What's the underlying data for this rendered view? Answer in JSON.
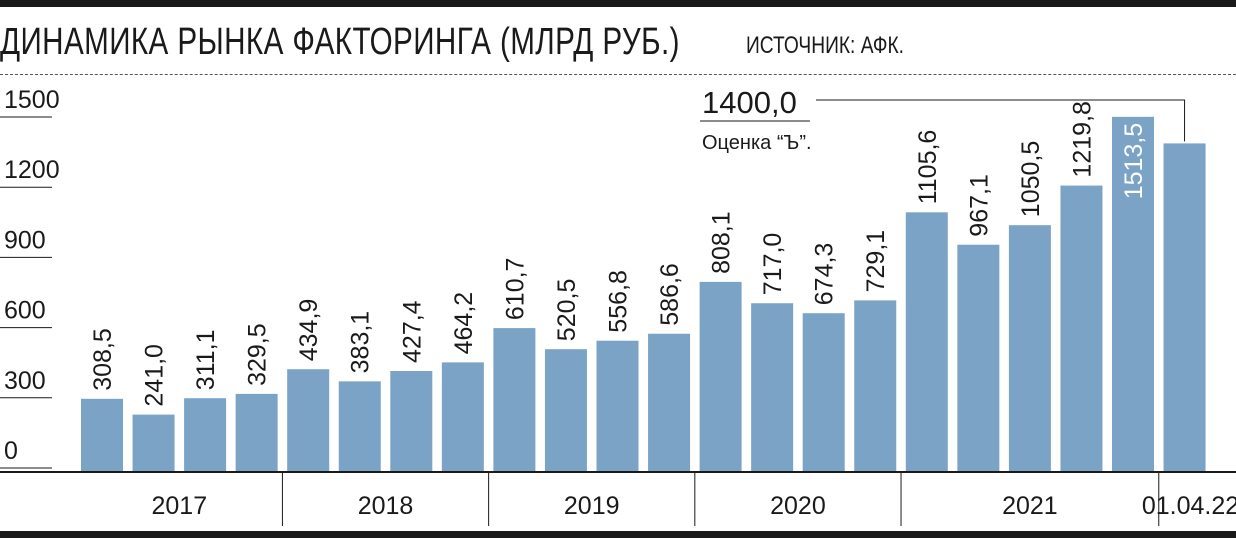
{
  "title": "ДИНАМИКА РЫНКА ФАКТОРИНГА (МЛРД РУБ.)",
  "source": "ИСТОЧНИК: АФК.",
  "colors": {
    "bar": "#7aa3c6",
    "text": "#1a1a1a",
    "rule": "#1a1a1a"
  },
  "chart_data": {
    "type": "bar",
    "title": "ДИНАМИКА РЫНКА ФАКТОРИНГА (МЛРД РУБ.)",
    "xlabel": "",
    "ylabel": "",
    "ylim": [
      0,
      1500
    ],
    "yticks": [
      "0",
      "300",
      "600",
      "900",
      "1200",
      "1500"
    ],
    "grid": false,
    "values": [
      308.5,
      241.0,
      311.1,
      329.5,
      434.9,
      383.1,
      427.4,
      464.2,
      610.7,
      520.5,
      556.8,
      586.6,
      808.1,
      717.0,
      674.3,
      729.1,
      1105.6,
      967.1,
      1050.5,
      1219.8,
      1513.5,
      1400.0
    ],
    "value_labels": [
      "308,5",
      "241,0",
      "311,1",
      "329,5",
      "434,9",
      "383,1",
      "427,4",
      "464,2",
      "610,7",
      "520,5",
      "556,8",
      "586,6",
      "808,1",
      "717,0",
      "674,3",
      "729,1",
      "1105,6",
      "967,1",
      "1050,5",
      "1219,8",
      "1513,5",
      ""
    ],
    "groups": [
      {
        "label": "2017",
        "count": 4
      },
      {
        "label": "2018",
        "count": 4
      },
      {
        "label": "2019",
        "count": 4
      },
      {
        "label": "2020",
        "count": 4
      },
      {
        "label": "2021",
        "count": 5
      },
      {
        "label": "01.04.22",
        "count": 1
      }
    ],
    "annotation": {
      "value": "1400,0",
      "note": "Оценка “Ъ”."
    }
  }
}
